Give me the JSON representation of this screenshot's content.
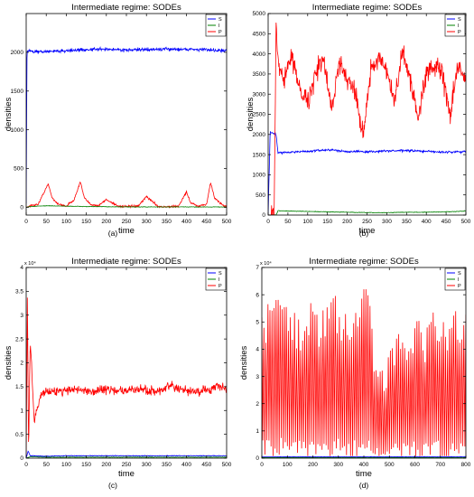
{
  "chart_data": [
    {
      "type": "line",
      "panel_label": "(a)",
      "title": "Intermediate regime: SODEs",
      "xlabel": "time",
      "ylabel": "densities",
      "xlim": [
        0,
        500
      ],
      "ylim": [
        -100,
        2500
      ],
      "exponent": "",
      "x_ticks": [
        0,
        50,
        100,
        150,
        200,
        250,
        300,
        350,
        400,
        450,
        500
      ],
      "y_ticks": [
        0,
        500,
        1000,
        1500,
        2000
      ],
      "y_tick_labels": [
        "0",
        "500",
        "1000",
        "1500",
        "2000"
      ],
      "legend": "top-right",
      "series": [
        {
          "name": "S",
          "color": "#0000ff",
          "x": [
            0,
            2,
            5,
            25,
            50,
            100,
            150,
            200,
            250,
            300,
            350,
            400,
            450,
            500
          ],
          "y": [
            50,
            2000,
            2020,
            2005,
            2010,
            2020,
            2035,
            2040,
            2030,
            2035,
            2040,
            2040,
            2035,
            2020
          ]
        },
        {
          "name": "I",
          "color": "#008000",
          "x": [
            0,
            10,
            50,
            100,
            150,
            200,
            250,
            300,
            350,
            400,
            450,
            500
          ],
          "y": [
            0,
            10,
            20,
            15,
            10,
            8,
            5,
            5,
            5,
            5,
            5,
            5
          ]
        },
        {
          "name": "P",
          "color": "#ff0000",
          "x": [
            0,
            10,
            30,
            45,
            55,
            65,
            80,
            100,
            120,
            135,
            145,
            160,
            180,
            200,
            230,
            250,
            280,
            300,
            330,
            350,
            380,
            400,
            410,
            430,
            450,
            460,
            470,
            490,
            500
          ],
          "y": [
            0,
            20,
            40,
            200,
            300,
            120,
            40,
            15,
            100,
            330,
            120,
            40,
            20,
            100,
            15,
            10,
            15,
            140,
            10,
            5,
            15,
            200,
            60,
            10,
            40,
            320,
            120,
            30,
            10
          ]
        }
      ]
    },
    {
      "type": "line",
      "panel_label": "(b)",
      "title": "Intermediate regime: SODEs",
      "xlabel": "time",
      "ylabel": "densities",
      "xlim": [
        0,
        500
      ],
      "ylim": [
        0,
        5000
      ],
      "exponent": "",
      "x_ticks": [
        0,
        50,
        100,
        150,
        200,
        250,
        300,
        350,
        400,
        450,
        500
      ],
      "y_ticks": [
        0,
        500,
        1000,
        1500,
        2000,
        2500,
        3000,
        3500,
        4000,
        4500,
        5000
      ],
      "y_tick_labels": [
        "0",
        "500",
        "1000",
        "1500",
        "2000",
        "2500",
        "3000",
        "3500",
        "4000",
        "4500",
        "5000"
      ],
      "legend": "top-right",
      "series": [
        {
          "name": "S",
          "color": "#0000ff",
          "x": [
            0,
            5,
            20,
            25,
            50,
            100,
            150,
            200,
            250,
            300,
            350,
            400,
            450,
            500
          ],
          "y": [
            0,
            2050,
            2000,
            1550,
            1560,
            1580,
            1620,
            1580,
            1570,
            1590,
            1600,
            1580,
            1560,
            1580
          ]
        },
        {
          "name": "I",
          "color": "#008000",
          "x": [
            0,
            20,
            25,
            50,
            100,
            150,
            200,
            250,
            300,
            350,
            400,
            450,
            500
          ],
          "y": [
            0,
            0,
            110,
            100,
            90,
            80,
            70,
            60,
            60,
            70,
            70,
            80,
            100
          ]
        },
        {
          "name": "P",
          "color": "#ff0000",
          "x": [
            0,
            15,
            20,
            25,
            40,
            60,
            80,
            100,
            120,
            140,
            160,
            180,
            200,
            220,
            240,
            260,
            280,
            300,
            320,
            340,
            360,
            380,
            400,
            420,
            440,
            460,
            480,
            500
          ],
          "y": [
            0,
            0,
            4800,
            3800,
            3400,
            3900,
            3200,
            2800,
            3500,
            3900,
            2600,
            3800,
            3400,
            3100,
            2000,
            3600,
            3900,
            3500,
            2800,
            4100,
            3300,
            2400,
            3600,
            3700,
            3500,
            2500,
            3700,
            3300
          ]
        }
      ]
    },
    {
      "type": "line",
      "panel_label": "(c)",
      "title": "Intermediate regime: SODEs",
      "xlabel": "time",
      "ylabel": "densities",
      "xlim": [
        0,
        500
      ],
      "ylim": [
        0,
        40000
      ],
      "exponent": "x 10⁴",
      "x_ticks": [
        0,
        50,
        100,
        150,
        200,
        250,
        300,
        350,
        400,
        450,
        500
      ],
      "y_ticks": [
        0,
        5000,
        10000,
        15000,
        20000,
        25000,
        30000,
        35000,
        40000
      ],
      "y_tick_labels": [
        "0",
        "0.5",
        "1",
        "1.5",
        "2",
        "2.5",
        "3",
        "3.5",
        "4"
      ],
      "legend": "top-right",
      "series": [
        {
          "name": "S",
          "color": "#0000ff",
          "x": [
            0,
            5,
            10,
            50,
            100,
            200,
            300,
            400,
            500
          ],
          "y": [
            0,
            1500,
            500,
            400,
            500,
            500,
            500,
            500,
            500
          ]
        },
        {
          "name": "I",
          "color": "#008000",
          "x": [
            0,
            10,
            50,
            100,
            200,
            300,
            400,
            500
          ],
          "y": [
            0,
            300,
            200,
            200,
            200,
            200,
            200,
            200
          ]
        },
        {
          "name": "P",
          "color": "#ff0000",
          "x": [
            0,
            3,
            6,
            10,
            20,
            40,
            80,
            120,
            160,
            200,
            240,
            280,
            320,
            360,
            400,
            440,
            480,
            500
          ],
          "y": [
            0,
            35000,
            1000,
            25000,
            8000,
            14000,
            14000,
            14500,
            14000,
            14500,
            14000,
            14500,
            14000,
            15000,
            14000,
            14000,
            15000,
            14500
          ]
        }
      ]
    },
    {
      "type": "line",
      "panel_label": "(d)",
      "title": "Intermediate regime: SODEs",
      "xlabel": "time",
      "ylabel": "densities",
      "xlim": [
        0,
        800
      ],
      "ylim": [
        0,
        70000
      ],
      "exponent": "x 10⁴",
      "x_ticks": [
        0,
        100,
        200,
        300,
        400,
        500,
        600,
        700,
        800
      ],
      "y_ticks": [
        0,
        10000,
        20000,
        30000,
        40000,
        50000,
        60000,
        70000
      ],
      "y_tick_labels": [
        "0",
        "1",
        "2",
        "3",
        "4",
        "5",
        "6",
        "7"
      ],
      "legend": "top-right",
      "series": [
        {
          "name": "S",
          "color": "#0000ff",
          "x": [
            0,
            100,
            200,
            300,
            400,
            500,
            600,
            700,
            800
          ],
          "y": [
            500,
            500,
            500,
            500,
            500,
            500,
            500,
            500,
            500
          ]
        },
        {
          "name": "I",
          "color": "#008000",
          "x": [
            0,
            100,
            200,
            300,
            400,
            500,
            600,
            700,
            800
          ],
          "y": [
            200,
            200,
            200,
            200,
            200,
            200,
            200,
            200,
            200
          ]
        },
        {
          "name": "P",
          "color": "#ff0000",
          "x": [
            0,
            40,
            80,
            120,
            160,
            200,
            240,
            280,
            320,
            360,
            400,
            420,
            440,
            480,
            520,
            560,
            600,
            640,
            680,
            720,
            760,
            800
          ],
          "y": [
            17000,
            18000,
            19000,
            17000,
            16000,
            18000,
            17000,
            19000,
            18000,
            17000,
            20000,
            22000,
            13000,
            10000,
            14000,
            15000,
            16000,
            15000,
            17000,
            16000,
            17000,
            18000
          ]
        }
      ]
    }
  ]
}
